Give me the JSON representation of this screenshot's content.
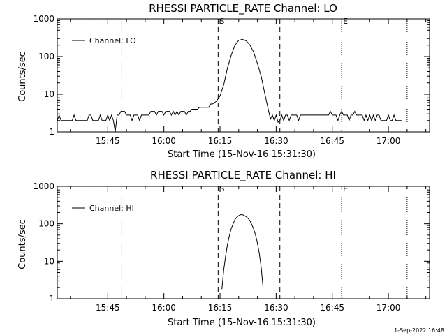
{
  "footer": {
    "date_stamp": "1-Sep-2022 16:48"
  },
  "chart_data": [
    {
      "type": "line",
      "title": "RHESSI PARTICLE_RATE Channel: LO",
      "xlabel": "Start Time (15-Nov-16 15:31:30)",
      "ylabel": "Counts/sec",
      "yscale": "log",
      "ylim": [
        1,
        1000
      ],
      "xlim": [
        "15:31:30",
        "17:11:00"
      ],
      "x_ticks": [
        "15:45",
        "16:00",
        "16:15",
        "16:30",
        "16:45",
        "17:00"
      ],
      "y_ticks": [
        "1",
        "10",
        "100",
        "1000"
      ],
      "grid": false,
      "legend": {
        "position": "top-left",
        "entries": [
          "Channel: LO"
        ]
      },
      "markers": [
        {
          "time": "16:14:30",
          "style": "dashed",
          "label": "S"
        },
        {
          "time": "16:31:00",
          "style": "dashed",
          "label": ""
        },
        {
          "time": "16:47:30",
          "style": "dotted",
          "label": "E"
        },
        {
          "time": "15:48:45",
          "style": "dotted",
          "label": ""
        },
        {
          "time": "17:05:00",
          "style": "dotted",
          "label": ""
        }
      ],
      "series": [
        {
          "name": "Channel: LO",
          "points": [
            [
              "15:31:30",
              2
            ],
            [
              "15:32:00",
              2.8
            ],
            [
              "15:32:30",
              2
            ],
            [
              "15:35:30",
              2
            ],
            [
              "15:36:00",
              2.8
            ],
            [
              "15:36:30",
              2
            ],
            [
              "15:39:30",
              2
            ],
            [
              "15:40:00",
              2.8
            ],
            [
              "15:40:30",
              2.8
            ],
            [
              "15:41:00",
              2
            ],
            [
              "15:42:30",
              2
            ],
            [
              "15:43:00",
              2.8
            ],
            [
              "15:43:30",
              2
            ],
            [
              "15:44:30",
              2
            ],
            [
              "15:45:00",
              2.8
            ],
            [
              "15:45:30",
              2
            ],
            [
              "15:46:00",
              2.8
            ],
            [
              "15:46:30",
              2
            ],
            [
              "15:47:00",
              1
            ],
            [
              "15:47:30",
              2.8
            ],
            [
              "15:48:00",
              2.8
            ],
            [
              "15:48:30",
              3.5
            ],
            [
              "15:49:30",
              3.5
            ],
            [
              "15:50:00",
              2.8
            ],
            [
              "15:51:00",
              2.8
            ],
            [
              "15:51:30",
              2
            ],
            [
              "15:52:00",
              2.8
            ],
            [
              "15:53:00",
              2.8
            ],
            [
              "15:53:30",
              2
            ],
            [
              "15:54:00",
              2.8
            ],
            [
              "15:56:00",
              2.8
            ],
            [
              "15:56:30",
              3.5
            ],
            [
              "15:57:30",
              3.5
            ],
            [
              "15:58:00",
              2.8
            ],
            [
              "15:58:30",
              3.5
            ],
            [
              "15:59:30",
              3.5
            ],
            [
              "16:00:00",
              2.8
            ],
            [
              "16:00:30",
              3.5
            ],
            [
              "16:01:30",
              3.5
            ],
            [
              "16:02:00",
              2.8
            ],
            [
              "16:02:30",
              3.5
            ],
            [
              "16:03:00",
              2.8
            ],
            [
              "16:03:30",
              3.5
            ],
            [
              "16:04:00",
              2.8
            ],
            [
              "16:04:30",
              3.5
            ],
            [
              "16:05:30",
              3.5
            ],
            [
              "16:06:00",
              2.8
            ],
            [
              "16:06:30",
              3.5
            ],
            [
              "16:07:00",
              3.5
            ],
            [
              "16:07:30",
              4
            ],
            [
              "16:09:00",
              4
            ],
            [
              "16:09:30",
              4.5
            ],
            [
              "16:12:00",
              4.5
            ],
            [
              "16:12:30",
              5.5
            ],
            [
              "16:13:00",
              5.5
            ],
            [
              "16:14:00",
              6.5
            ],
            [
              "16:15:00",
              9
            ],
            [
              "16:16:00",
              18
            ],
            [
              "16:17:00",
              50
            ],
            [
              "16:18:00",
              110
            ],
            [
              "16:19:00",
              200
            ],
            [
              "16:20:00",
              270
            ],
            [
              "16:21:00",
              285
            ],
            [
              "16:22:00",
              260
            ],
            [
              "16:23:00",
              200
            ],
            [
              "16:24:00",
              130
            ],
            [
              "16:25:00",
              65
            ],
            [
              "16:26:00",
              30
            ],
            [
              "16:27:00",
              10
            ],
            [
              "16:28:00",
              3.5
            ],
            [
              "16:28:30",
              2.2
            ],
            [
              "16:29:00",
              2.8
            ],
            [
              "16:29:30",
              2
            ],
            [
              "16:30:00",
              2.8
            ],
            [
              "16:30:30",
              1.8
            ],
            [
              "16:31:00",
              2
            ],
            [
              "16:31:30",
              2.8
            ],
            [
              "16:32:00",
              2
            ],
            [
              "16:32:30",
              2.8
            ],
            [
              "16:33:00",
              2.8
            ],
            [
              "16:33:30",
              2
            ],
            [
              "16:34:00",
              2.8
            ],
            [
              "16:35:30",
              2.8
            ],
            [
              "16:36:00",
              2
            ],
            [
              "16:36:30",
              2.8
            ],
            [
              "16:44:00",
              2.8
            ],
            [
              "16:44:30",
              3.5
            ],
            [
              "16:45:00",
              2.8
            ],
            [
              "16:46:00",
              2.8
            ],
            [
              "16:46:30",
              2
            ],
            [
              "16:47:00",
              2.8
            ],
            [
              "16:47:30",
              3.5
            ],
            [
              "16:48:00",
              2.8
            ],
            [
              "16:49:00",
              2.8
            ],
            [
              "16:49:30",
              2
            ],
            [
              "16:50:00",
              2.8
            ],
            [
              "16:50:30",
              2.8
            ],
            [
              "16:51:00",
              3.5
            ],
            [
              "16:51:30",
              2.8
            ],
            [
              "16:53:00",
              2.8
            ],
            [
              "16:53:30",
              2
            ],
            [
              "16:54:00",
              2.8
            ],
            [
              "16:54:30",
              2
            ],
            [
              "16:55:00",
              2.8
            ],
            [
              "16:55:30",
              2
            ],
            [
              "16:56:00",
              2.8
            ],
            [
              "16:56:30",
              2
            ],
            [
              "16:57:00",
              2.8
            ],
            [
              "16:57:30",
              2.8
            ],
            [
              "16:58:00",
              2
            ],
            [
              "16:59:30",
              2
            ],
            [
              "17:00:00",
              2.8
            ],
            [
              "17:00:30",
              2
            ],
            [
              "17:01:00",
              2
            ],
            [
              "17:01:30",
              2.8
            ],
            [
              "17:02:00",
              2
            ],
            [
              "17:03:30",
              2
            ]
          ]
        }
      ]
    },
    {
      "type": "line",
      "title": "RHESSI PARTICLE_RATE Channel: HI",
      "xlabel": "Start Time (15-Nov-16 15:31:30)",
      "ylabel": "Counts/sec",
      "yscale": "log",
      "ylim": [
        1,
        1000
      ],
      "xlim": [
        "15:31:30",
        "17:11:00"
      ],
      "x_ticks": [
        "15:45",
        "16:00",
        "16:15",
        "16:30",
        "16:45",
        "17:00"
      ],
      "y_ticks": [
        "1",
        "10",
        "100",
        "1000"
      ],
      "grid": false,
      "legend": {
        "position": "top-left",
        "entries": [
          "Channel: HI"
        ]
      },
      "markers": [
        {
          "time": "16:14:30",
          "style": "dashed",
          "label": "S"
        },
        {
          "time": "16:31:00",
          "style": "dashed",
          "label": ""
        },
        {
          "time": "16:47:30",
          "style": "dotted",
          "label": "E"
        },
        {
          "time": "15:48:45",
          "style": "dotted",
          "label": ""
        },
        {
          "time": "17:05:00",
          "style": "dotted",
          "label": ""
        }
      ],
      "series": [
        {
          "name": "Channel: HI",
          "points": [
            [
              "16:15:30",
              1.8
            ],
            [
              "16:16:00",
              6
            ],
            [
              "16:16:30",
              14
            ],
            [
              "16:17:00",
              28
            ],
            [
              "16:17:30",
              48
            ],
            [
              "16:18:00",
              75
            ],
            [
              "16:18:30",
              100
            ],
            [
              "16:19:00",
              130
            ],
            [
              "16:19:30",
              150
            ],
            [
              "16:20:00",
              165
            ],
            [
              "16:20:30",
              175
            ],
            [
              "16:21:00",
              175
            ],
            [
              "16:21:30",
              165
            ],
            [
              "16:22:00",
              155
            ],
            [
              "16:22:30",
              140
            ],
            [
              "16:23:00",
              120
            ],
            [
              "16:23:30",
              95
            ],
            [
              "16:24:00",
              72
            ],
            [
              "16:24:30",
              50
            ],
            [
              "16:25:00",
              30
            ],
            [
              "16:25:30",
              16
            ],
            [
              "16:26:00",
              7
            ],
            [
              "16:26:30",
              2
            ]
          ]
        }
      ]
    }
  ]
}
